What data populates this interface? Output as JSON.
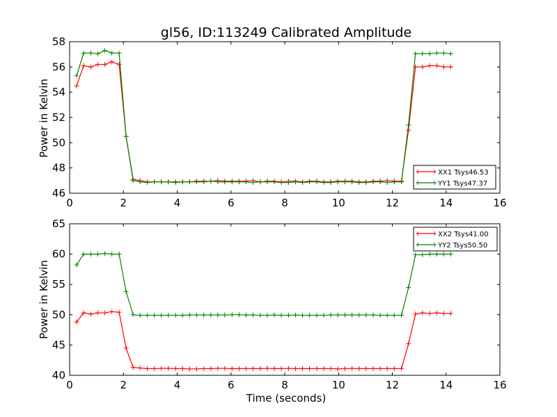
{
  "figure": {
    "title": "gl56, ID:113249 Calibrated Amplitude"
  },
  "colors": {
    "xx": "#ff0000",
    "yy": "#008000",
    "frame": "#000000",
    "background": "#ffffff"
  },
  "chart_data": [
    {
      "type": "line",
      "marker": "plus",
      "title": "gl56, ID:113249 Calibrated Amplitude",
      "xlabel": "",
      "ylabel": "Power in Kelvin",
      "xlim": [
        0,
        16
      ],
      "ylim": [
        46,
        58
      ],
      "xticks": [
        "0",
        "2",
        "4",
        "6",
        "8",
        "10",
        "12",
        "14",
        "16"
      ],
      "yticks": [
        "46",
        "48",
        "50",
        "52",
        "54",
        "56",
        "58"
      ],
      "grid": false,
      "legend": "lower-right",
      "x": [
        0.26,
        0.52,
        0.79,
        1.05,
        1.31,
        1.57,
        1.84,
        2.1,
        2.36,
        2.62,
        2.89,
        3.15,
        3.41,
        3.67,
        3.94,
        4.2,
        4.46,
        4.72,
        4.99,
        5.25,
        5.51,
        5.77,
        6.04,
        6.3,
        6.56,
        6.82,
        7.09,
        7.35,
        7.61,
        7.87,
        8.14,
        8.4,
        8.66,
        8.92,
        9.19,
        9.45,
        9.71,
        9.97,
        10.24,
        10.5,
        10.76,
        11.02,
        11.29,
        11.55,
        11.81,
        12.07,
        12.34,
        12.6,
        12.86,
        13.12,
        13.39,
        13.65,
        13.91,
        14.17
      ],
      "series": [
        {
          "name": "XX1 Tsys46.53",
          "color": "#ff0000",
          "values": [
            54.5,
            56.1,
            56.0,
            56.2,
            56.2,
            56.4,
            56.2,
            50.5,
            47.1,
            47.0,
            46.9,
            46.9,
            46.9,
            46.9,
            46.9,
            46.9,
            46.9,
            46.95,
            46.95,
            46.95,
            47.0,
            46.95,
            46.95,
            46.95,
            46.95,
            47.0,
            46.9,
            46.95,
            46.95,
            46.9,
            46.95,
            46.95,
            46.9,
            46.95,
            46.95,
            46.9,
            46.9,
            46.95,
            46.95,
            46.95,
            46.9,
            46.9,
            46.95,
            46.95,
            47.0,
            46.95,
            46.95,
            51.0,
            56.0,
            56.0,
            56.1,
            56.1,
            56.0,
            56.0
          ]
        },
        {
          "name": "YY1 Tsys47.37",
          "color": "#008000",
          "values": [
            55.3,
            57.1,
            57.1,
            57.05,
            57.3,
            57.1,
            57.1,
            50.5,
            47.0,
            46.9,
            46.85,
            46.9,
            46.9,
            46.9,
            46.85,
            46.9,
            46.9,
            46.9,
            46.9,
            46.95,
            46.9,
            46.9,
            46.9,
            46.9,
            46.9,
            46.85,
            46.9,
            46.9,
            46.9,
            46.85,
            46.85,
            46.9,
            46.85,
            46.9,
            46.9,
            46.85,
            46.85,
            46.9,
            46.9,
            46.9,
            46.85,
            46.85,
            46.9,
            46.9,
            46.85,
            46.9,
            46.9,
            51.4,
            57.05,
            57.05,
            57.05,
            57.1,
            57.1,
            57.05
          ]
        }
      ]
    },
    {
      "type": "line",
      "marker": "plus",
      "title": "",
      "xlabel": "Time (seconds)",
      "ylabel": "Power in Kelvin",
      "xlim": [
        0,
        16
      ],
      "ylim": [
        40,
        65
      ],
      "xticks": [
        "0",
        "2",
        "4",
        "6",
        "8",
        "10",
        "12",
        "14",
        "16"
      ],
      "yticks": [
        "40",
        "45",
        "50",
        "55",
        "60",
        "65"
      ],
      "grid": false,
      "legend": "upper-right",
      "x": [
        0.26,
        0.52,
        0.79,
        1.05,
        1.31,
        1.57,
        1.84,
        2.1,
        2.36,
        2.62,
        2.89,
        3.15,
        3.41,
        3.67,
        3.94,
        4.2,
        4.46,
        4.72,
        4.99,
        5.25,
        5.51,
        5.77,
        6.04,
        6.3,
        6.56,
        6.82,
        7.09,
        7.35,
        7.61,
        7.87,
        8.14,
        8.4,
        8.66,
        8.92,
        9.19,
        9.45,
        9.71,
        9.97,
        10.24,
        10.5,
        10.76,
        11.02,
        11.29,
        11.55,
        11.81,
        12.07,
        12.34,
        12.6,
        12.86,
        13.12,
        13.39,
        13.65,
        13.91,
        14.17
      ],
      "series": [
        {
          "name": "XX2 Tsys41.00",
          "color": "#ff0000",
          "values": [
            48.8,
            50.3,
            50.1,
            50.3,
            50.3,
            50.5,
            50.4,
            44.5,
            41.3,
            41.2,
            41.1,
            41.1,
            41.15,
            41.15,
            41.1,
            41.1,
            41.05,
            41.05,
            41.1,
            41.1,
            41.15,
            41.15,
            41.1,
            41.1,
            41.1,
            41.1,
            41.1,
            41.15,
            41.1,
            41.1,
            41.15,
            41.1,
            41.1,
            41.1,
            41.1,
            41.1,
            41.1,
            41.05,
            41.1,
            41.15,
            41.1,
            41.1,
            41.1,
            41.1,
            41.1,
            41.1,
            41.1,
            45.2,
            50.1,
            50.3,
            50.2,
            50.3,
            50.2,
            50.2
          ]
        },
        {
          "name": "YY2 Tsys50.50",
          "color": "#008000",
          "values": [
            58.2,
            60.0,
            60.0,
            60.0,
            60.1,
            60.0,
            60.0,
            53.8,
            50.0,
            49.9,
            49.9,
            49.9,
            49.9,
            49.9,
            49.9,
            49.9,
            49.95,
            49.95,
            49.95,
            49.95,
            49.95,
            49.95,
            50.0,
            50.0,
            49.95,
            49.95,
            49.9,
            49.9,
            49.95,
            49.9,
            49.9,
            49.95,
            49.9,
            49.9,
            49.9,
            49.9,
            49.95,
            49.95,
            49.95,
            49.95,
            49.95,
            49.95,
            49.95,
            49.9,
            49.9,
            49.9,
            49.9,
            54.5,
            59.9,
            59.9,
            60.0,
            60.0,
            60.0,
            60.0
          ]
        }
      ]
    }
  ]
}
